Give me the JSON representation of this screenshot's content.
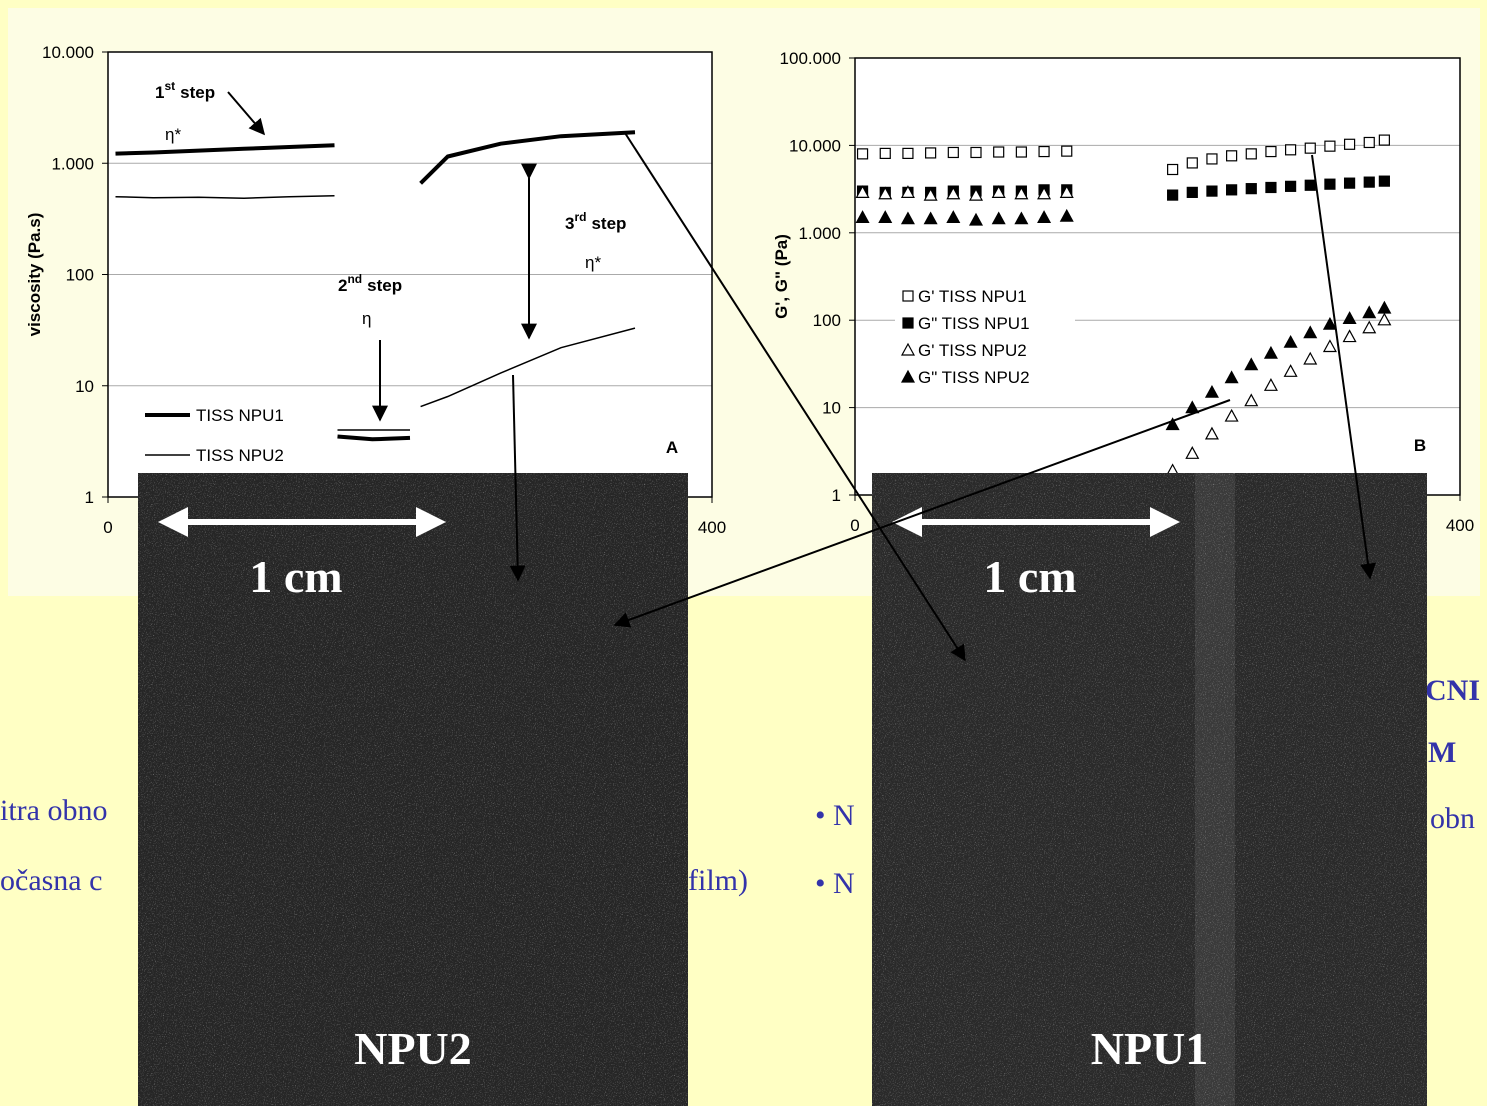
{
  "chart_data": [
    {
      "type": "line",
      "panel_label": "A",
      "y_label": "viscosity (Pa.s)",
      "log_y": true,
      "grid": true,
      "legend": "lower left",
      "xlim": [
        0,
        400
      ],
      "xticks": [
        0,
        400
      ],
      "ylim": [
        1,
        10000
      ],
      "yticks": [
        1,
        10,
        100,
        {
          "value": 1000,
          "label": "1.000"
        },
        {
          "value": 10000,
          "label": "10.000"
        }
      ],
      "x": [
        5,
        30,
        60,
        90,
        120,
        150,
        151,
        152,
        175,
        200,
        204,
        207,
        225,
        260,
        300,
        349
      ],
      "series": [
        {
          "name": "TISS NPU1",
          "color": "#000000",
          "line_width": 4,
          "values": [
            1220,
            1250,
            1300,
            1350,
            1400,
            1450,
            null,
            3.5,
            3.3,
            3.4,
            null,
            660,
            1150,
            1500,
            1750,
            1900
          ]
        },
        {
          "name": "TISS NPU2",
          "color": "#000000",
          "line_width": 1.5,
          "values": [
            500,
            490,
            495,
            485,
            500,
            510,
            null,
            4,
            4,
            4,
            null,
            6.5,
            8,
            13,
            22,
            33
          ]
        }
      ],
      "annotations": [
        {
          "label": "1",
          "sup": "st",
          "text": "step"
        },
        {
          "text": "η*"
        },
        {
          "label": "2",
          "sup": "nd",
          "text": "step"
        },
        {
          "text": "η"
        },
        {
          "label": "3",
          "sup": "rd",
          "text": "step"
        },
        {
          "text": "η*"
        }
      ]
    },
    {
      "type": "scatter",
      "panel_label": "B",
      "y_label": "G', G\" (Pa)",
      "log_y": true,
      "grid": true,
      "legend": "middle left",
      "xlim": [
        0,
        400
      ],
      "xticks": [
        0,
        400
      ],
      "ylim": [
        1,
        100000
      ],
      "yticks": [
        1,
        10,
        100,
        {
          "value": 1000,
          "label": "1.000"
        },
        {
          "value": 10000,
          "label": "10.000"
        },
        {
          "value": 100000,
          "label": "100.000"
        }
      ],
      "x": [
        5,
        20,
        35,
        50,
        65,
        80,
        95,
        110,
        125,
        140,
        210,
        223,
        236,
        249,
        262,
        275,
        288,
        301,
        314,
        327,
        340,
        350
      ],
      "series": [
        {
          "name": "G' TISS NPU1",
          "color": "#000000",
          "marker": "square-open",
          "values": [
            8000,
            8100,
            8100,
            8200,
            8300,
            8300,
            8400,
            8400,
            8500,
            8600,
            5300,
            6300,
            7000,
            7600,
            8000,
            8500,
            8900,
            9300,
            9800,
            10300,
            10800,
            11500
          ]
        },
        {
          "name": "G\" TISS NPU1",
          "color": "#000000",
          "marker": "square",
          "values": [
            3000,
            2900,
            2900,
            2900,
            3000,
            3000,
            3000,
            3000,
            3100,
            3100,
            2700,
            2900,
            3000,
            3100,
            3200,
            3300,
            3400,
            3500,
            3600,
            3700,
            3800,
            3900
          ]
        },
        {
          "name": "G' TISS NPU2",
          "color": "#000000",
          "marker": "triangle-open",
          "values": [
            2900,
            2800,
            2900,
            2700,
            2800,
            2700,
            2900,
            2800,
            2800,
            2900,
            1.9,
            3,
            5,
            8,
            12,
            18,
            26,
            36,
            50,
            65,
            82,
            101
          ]
        },
        {
          "name": "G\" TISS NPU2",
          "color": "#000000",
          "marker": "triangle",
          "values": [
            1500,
            1500,
            1450,
            1450,
            1500,
            1400,
            1450,
            1450,
            1500,
            1550,
            6.4,
            10,
            15,
            22,
            31,
            42,
            56,
            72,
            90,
            105,
            122,
            138
          ]
        }
      ]
    }
  ],
  "photos": [
    {
      "scale": "1 cm",
      "label": "NPU2"
    },
    {
      "scale": "1 cm",
      "label": "NPU1"
    }
  ],
  "slide_text": [
    "itra obno",
    "očasna c",
    "film)",
    "• N",
    "• N",
    "obn",
    "CNI",
    "M"
  ]
}
